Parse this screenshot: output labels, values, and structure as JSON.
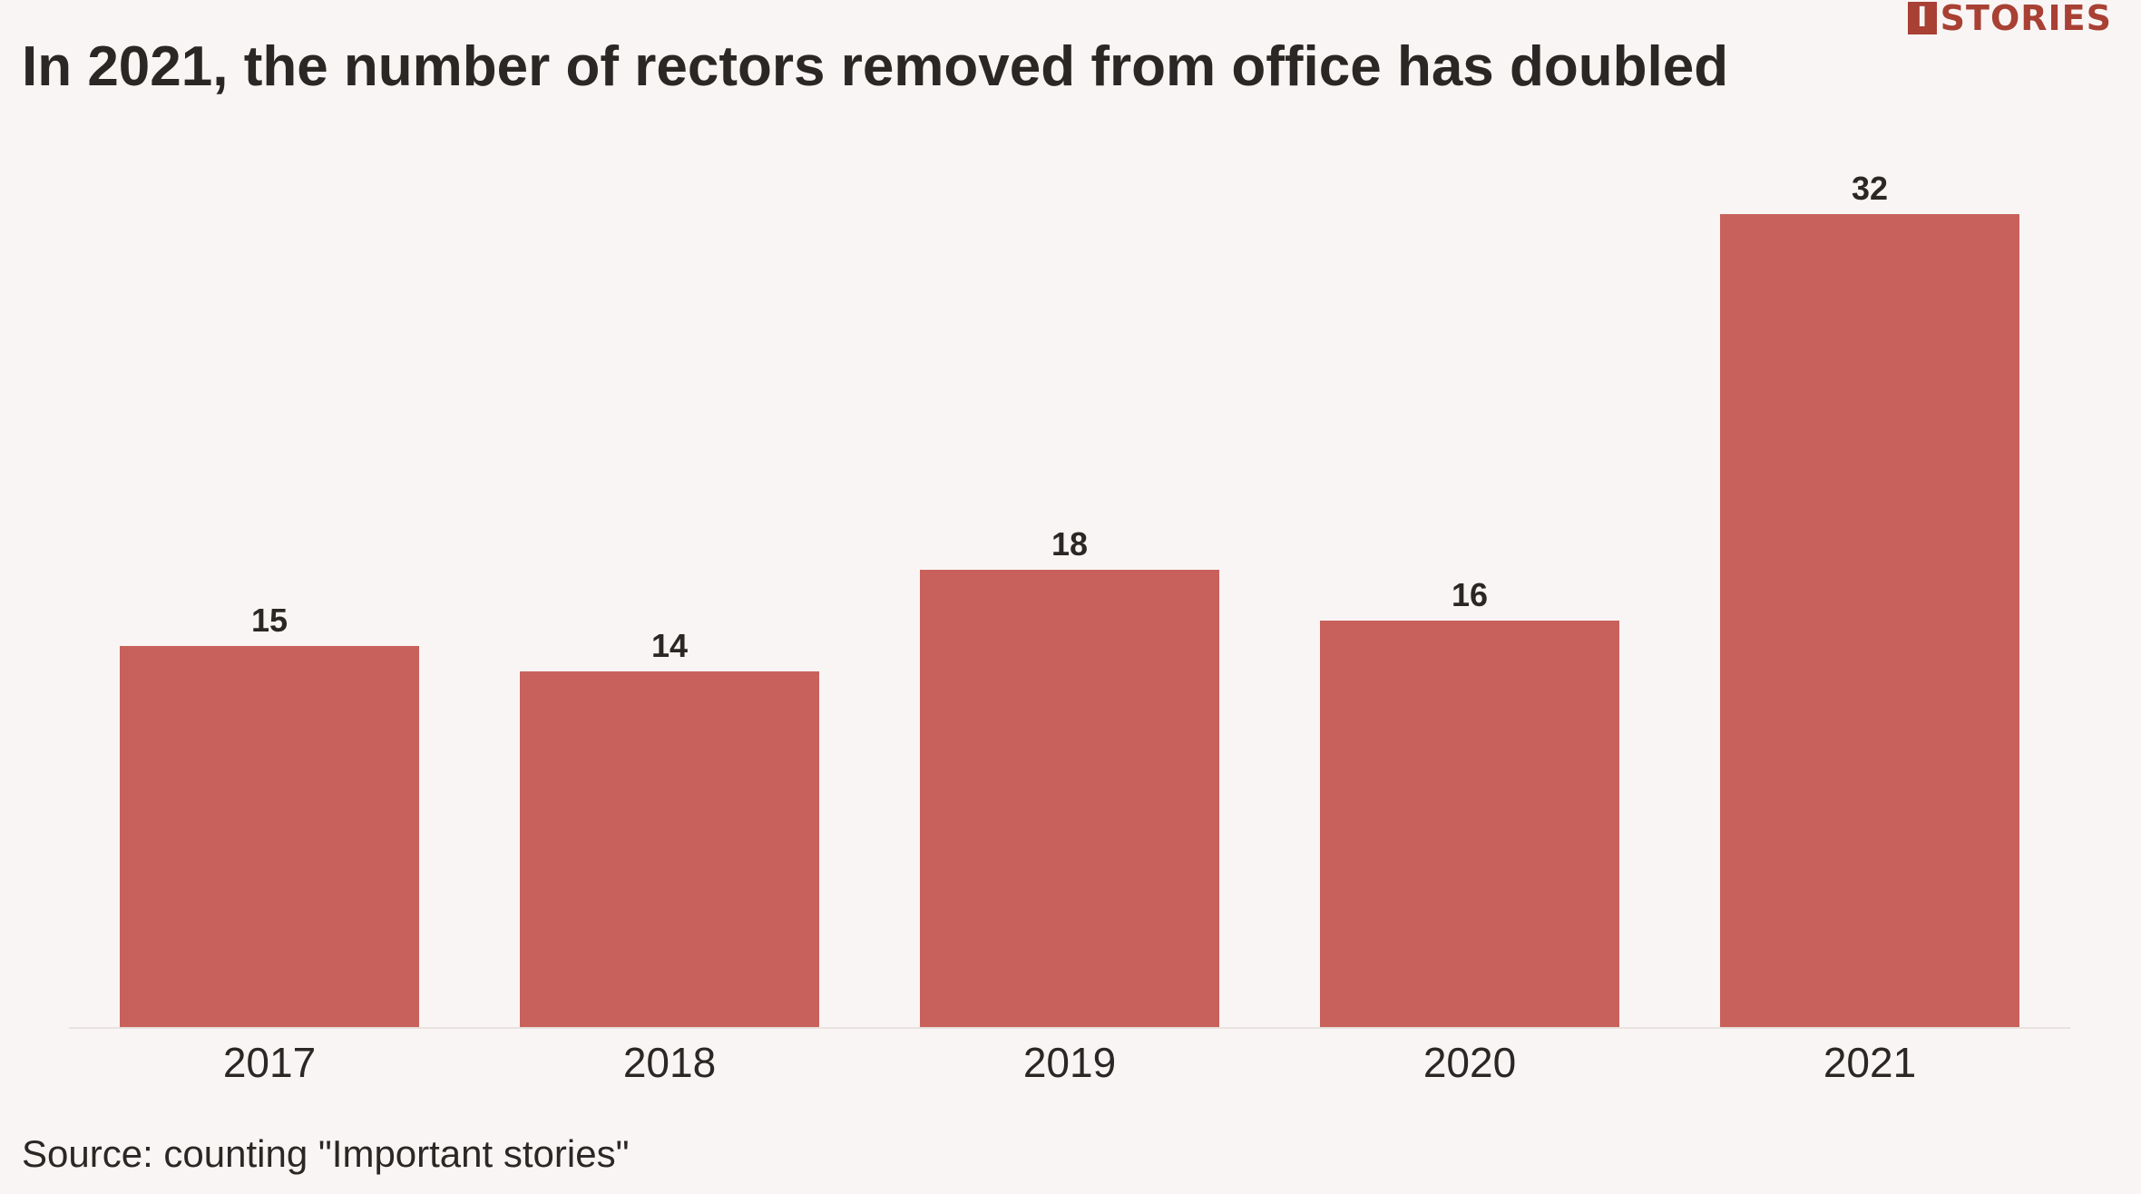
{
  "logo": {
    "mark": "I",
    "text": "STORIES",
    "color": "#a84034"
  },
  "title": "In 2021, the number of rectors removed from office has doubled",
  "source": "Source: counting \"Important stories\"",
  "colors": {
    "bar": "#c8615c",
    "background": "#f9f5f4",
    "text": "#2b2725",
    "axis": "#e8e2e0"
  },
  "chart_data": {
    "type": "bar",
    "categories": [
      "2017",
      "2018",
      "2019",
      "2020",
      "2021"
    ],
    "values": [
      15,
      14,
      18,
      16,
      32
    ],
    "data_labels": [
      "15",
      "14",
      "18",
      "16",
      "32"
    ],
    "title": "In 2021, the number of rectors removed from office has doubled",
    "xlabel": "",
    "ylabel": "",
    "ylim": [
      0,
      32
    ],
    "grid": false,
    "legend": "none"
  }
}
